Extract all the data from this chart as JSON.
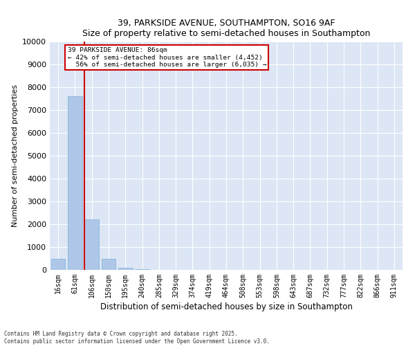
{
  "title1": "39, PARKSIDE AVENUE, SOUTHAMPTON, SO16 9AF",
  "title2": "Size of property relative to semi-detached houses in Southampton",
  "xlabel": "Distribution of semi-detached houses by size in Southampton",
  "ylabel": "Number of semi-detached properties",
  "categories": [
    "16sqm",
    "61sqm",
    "106sqm",
    "150sqm",
    "195sqm",
    "240sqm",
    "285sqm",
    "329sqm",
    "374sqm",
    "419sqm",
    "464sqm",
    "508sqm",
    "553sqm",
    "598sqm",
    "643sqm",
    "687sqm",
    "732sqm",
    "777sqm",
    "822sqm",
    "866sqm",
    "911sqm"
  ],
  "values": [
    480,
    7600,
    2200,
    500,
    100,
    20,
    5,
    2,
    1,
    1,
    0,
    0,
    0,
    0,
    0,
    0,
    0,
    0,
    0,
    0,
    0
  ],
  "bar_color": "#aec6e8",
  "bar_edge_color": "#7bafd4",
  "ylim": [
    0,
    10000
  ],
  "yticks": [
    0,
    1000,
    2000,
    3000,
    4000,
    5000,
    6000,
    7000,
    8000,
    9000,
    10000
  ],
  "vline_x_index": 1.556,
  "property_label": "39 PARKSIDE AVENUE: 86sqm",
  "smaller_pct": "42%",
  "smaller_count": "4,452",
  "larger_pct": "56%",
  "larger_count": "6,035",
  "vline_color": "#cc0000",
  "annotation_box_color": "#cc0000",
  "bg_color": "#dce6f5",
  "fig_bg_color": "#ffffff",
  "footer1": "Contains HM Land Registry data © Crown copyright and database right 2025.",
  "footer2": "Contains public sector information licensed under the Open Government Licence v3.0."
}
